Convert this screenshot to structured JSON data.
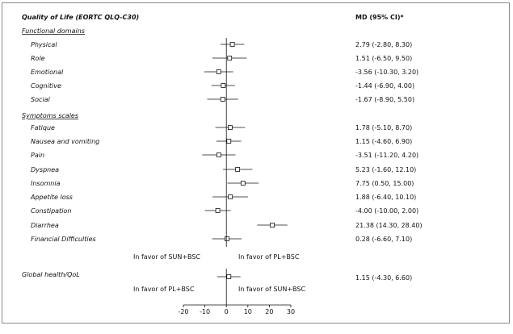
{
  "chart_data": {
    "type": "forest",
    "title": "Quality of Life (EORTC QLQ-C30)",
    "md_header": "MD (95% CI)*",
    "xlim": [
      -20,
      30
    ],
    "x_ticks": [
      -20,
      -10,
      0,
      10,
      20,
      30
    ],
    "x_tick_labels": [
      "-20",
      "-10",
      "0",
      "10",
      "20",
      "30"
    ],
    "sections": [
      {
        "name": "Functional domains",
        "items": [
          {
            "label": "Physical",
            "md": 2.79,
            "lo": -2.8,
            "hi": 8.3,
            "text": "2.79 (-2.80, 8.30)"
          },
          {
            "label": "Role",
            "md": 1.51,
            "lo": -6.5,
            "hi": 9.5,
            "text": "1.51 (-6.50, 9.50)"
          },
          {
            "label": "Emotional",
            "md": -3.56,
            "lo": -10.3,
            "hi": 3.2,
            "text": "-3.56 (-10.30, 3.20)"
          },
          {
            "label": "Cognitive",
            "md": -1.44,
            "lo": -6.9,
            "hi": 4.0,
            "text": "-1.44 (-6.90, 4.00)"
          },
          {
            "label": "Social",
            "md": -1.67,
            "lo": -8.9,
            "hi": 5.5,
            "text": "-1.67 (-8.90, 5.50)"
          }
        ]
      },
      {
        "name": "Symptoms scales",
        "items": [
          {
            "label": "Fatique",
            "md": 1.78,
            "lo": -5.1,
            "hi": 8.7,
            "text": "1.78 (-5.10, 8.70)"
          },
          {
            "label": "Nausea and vomiting",
            "md": 1.15,
            "lo": -4.6,
            "hi": 6.9,
            "text": "1.15 (-4.60, 6.90)"
          },
          {
            "label": "Pain",
            "md": -3.51,
            "lo": -11.2,
            "hi": 4.2,
            "text": "-3.51 (-11.20, 4.20)"
          },
          {
            "label": "Dyspnea",
            "md": 5.23,
            "lo": -1.6,
            "hi": 12.1,
            "text": "5.23 (-1.60, 12.10)"
          },
          {
            "label": "Insomnia",
            "md": 7.75,
            "lo": 0.5,
            "hi": 15.0,
            "text": "7.75 (0.50, 15.00)"
          },
          {
            "label": "Appetite loss",
            "md": 1.88,
            "lo": -6.4,
            "hi": 10.1,
            "text": "1.88 (-6.40, 10.10)"
          },
          {
            "label": "Constipation",
            "md": -4.0,
            "lo": -10.0,
            "hi": 2.0,
            "text": "-4.00 (-10.00, 2.00)"
          },
          {
            "label": "Diarrhea",
            "md": 21.38,
            "lo": 14.3,
            "hi": 28.4,
            "text": "21.38 (14.30, 28.40)"
          },
          {
            "label": "Financial Difficulties",
            "md": 0.28,
            "lo": -6.6,
            "hi": 7.1,
            "text": "0.28 (-6.60, 7.10)"
          }
        ]
      }
    ],
    "favor_top": {
      "left": "In favor of SUN+BSC",
      "right": "In favor of PL+BSC"
    },
    "global": {
      "label": "Global health/QoL",
      "md": 1.15,
      "lo": -4.3,
      "hi": 6.6,
      "text": "1.15 (-4.30, 6.60)"
    },
    "favor_bottom": {
      "left": "In favor of PL+BSC",
      "right": "In favor of SUN+BSC"
    },
    "colors": {
      "ink": "#111111",
      "marker_fill": "#ffffff",
      "frame": "#8a8a8a"
    }
  }
}
